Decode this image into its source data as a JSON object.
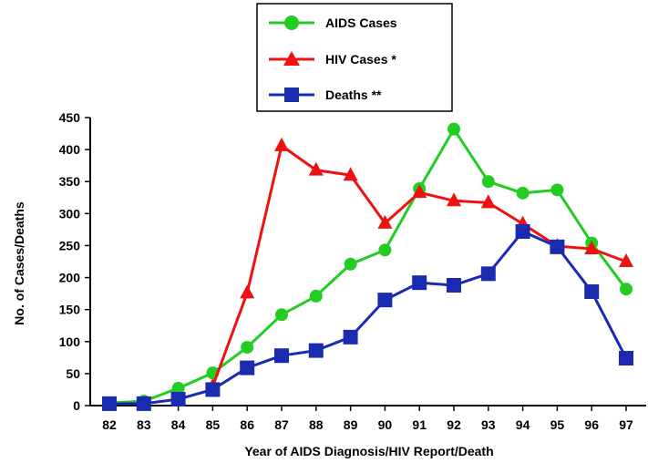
{
  "chart_data": {
    "type": "line",
    "categories": [
      "82",
      "83",
      "84",
      "85",
      "86",
      "87",
      "88",
      "89",
      "90",
      "91",
      "92",
      "93",
      "94",
      "95",
      "96",
      "97"
    ],
    "xlabel": "Year of AIDS Diagnosis/HIV Report/Death",
    "ylabel": "No. of Cases/Deaths",
    "ylim": [
      0,
      450
    ],
    "yticks": [
      0,
      50,
      100,
      150,
      200,
      250,
      300,
      350,
      400,
      450
    ],
    "grid": false,
    "legend_position": "top-center",
    "series": [
      {
        "name": "AIDS Cases",
        "color": "#22cc22",
        "marker": "circle",
        "values": [
          4,
          7,
          27,
          51,
          91,
          142,
          171,
          221,
          243,
          339,
          432,
          350,
          332,
          337,
          254,
          182
        ]
      },
      {
        "name": "HIV Cases *",
        "color": "#ee1111",
        "marker": "triangle",
        "values": [
          null,
          null,
          null,
          30,
          176,
          406,
          368,
          360,
          285,
          333,
          320,
          317,
          284,
          249,
          245,
          225
        ]
      },
      {
        "name": "Deaths **",
        "color": "#1a2bb0",
        "marker": "square",
        "values": [
          3,
          3,
          10,
          25,
          59,
          78,
          86,
          107,
          165,
          192,
          188,
          206,
          272,
          248,
          178,
          74
        ]
      }
    ]
  }
}
